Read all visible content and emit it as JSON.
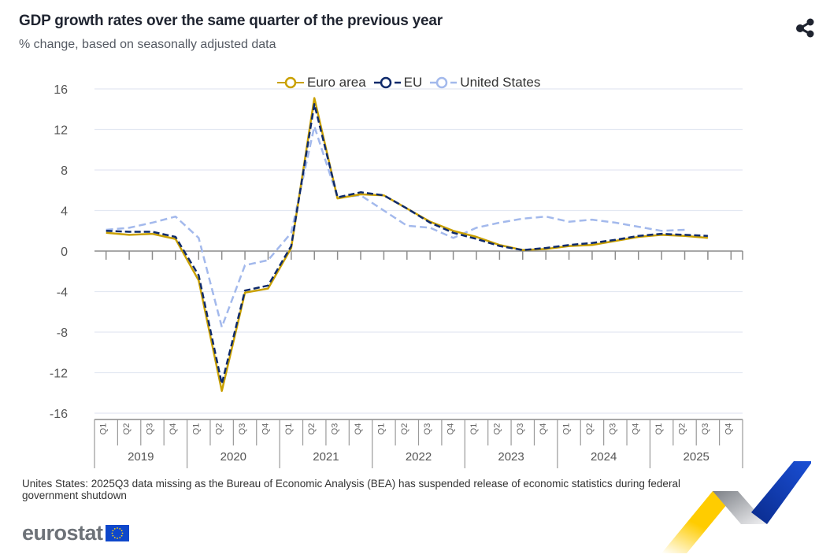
{
  "header": {
    "title": "GDP growth rates over the same quarter of the previous year",
    "subtitle": "% change, based on seasonally adjusted data",
    "share_icon": "share-icon"
  },
  "legend": [
    {
      "name": "Euro area",
      "color": "#c9a000"
    },
    {
      "name": "EU",
      "color": "#0e2a6b"
    },
    {
      "name": "United States",
      "color": "#a3b9ec"
    }
  ],
  "footnote": "Unites States: 2025Q3 data missing as the Bureau of Economic Analysis (BEA) has suspended release of economic statistics during federal government shutdown",
  "logo": {
    "text": "eurostat",
    "flag_icon": "eu-flag-icon"
  },
  "chart_data": {
    "type": "line",
    "title": "GDP growth rates over the same quarter of the previous year",
    "subtitle": "% change, based on seasonally adjusted data",
    "xlabel": "",
    "ylabel": "",
    "ylim": [
      -16,
      16
    ],
    "yticks": [
      16,
      12,
      8,
      4,
      0,
      -4,
      -8,
      -12,
      -16
    ],
    "grid": true,
    "legend_position": "top-center",
    "years": [
      "2019",
      "2020",
      "2021",
      "2022",
      "2023",
      "2024",
      "2025"
    ],
    "quarters": [
      "Q1",
      "Q2",
      "Q3",
      "Q4"
    ],
    "categories": [
      "2019Q1",
      "2019Q2",
      "2019Q3",
      "2019Q4",
      "2020Q1",
      "2020Q2",
      "2020Q3",
      "2020Q4",
      "2021Q1",
      "2021Q2",
      "2021Q3",
      "2021Q4",
      "2022Q1",
      "2022Q2",
      "2022Q3",
      "2022Q4",
      "2023Q1",
      "2023Q2",
      "2023Q3",
      "2023Q4",
      "2024Q1",
      "2024Q2",
      "2024Q3",
      "2024Q4",
      "2025Q1",
      "2025Q2",
      "2025Q3",
      "2025Q4"
    ],
    "series": [
      {
        "name": "Euro area",
        "color": "#c9a000",
        "style": "solid",
        "values": [
          1.8,
          1.6,
          1.7,
          1.2,
          -2.9,
          -13.8,
          -4.1,
          -3.7,
          0.3,
          15.1,
          5.2,
          5.6,
          5.5,
          4.2,
          2.9,
          2.0,
          1.4,
          0.6,
          0.1,
          0.2,
          0.5,
          0.6,
          1.0,
          1.4,
          1.6,
          1.5,
          1.3,
          null
        ]
      },
      {
        "name": "EU",
        "color": "#0e2a6b",
        "style": "dashed",
        "values": [
          2.0,
          1.9,
          1.9,
          1.4,
          -2.4,
          -13.1,
          -3.9,
          -3.4,
          0.5,
          14.5,
          5.3,
          5.8,
          5.5,
          4.2,
          2.8,
          1.8,
          1.2,
          0.5,
          0.1,
          0.3,
          0.6,
          0.8,
          1.1,
          1.5,
          1.7,
          1.6,
          1.5,
          null
        ]
      },
      {
        "name": "United States",
        "color": "#a3b9ec",
        "style": "dashed",
        "values": [
          2.1,
          2.3,
          2.8,
          3.4,
          1.3,
          -7.5,
          -1.4,
          -0.9,
          1.8,
          12.3,
          5.3,
          5.5,
          4.0,
          2.5,
          2.3,
          1.3,
          2.3,
          2.8,
          3.2,
          3.4,
          2.9,
          3.1,
          2.8,
          2.4,
          2.0,
          2.1,
          null,
          null
        ]
      }
    ]
  }
}
